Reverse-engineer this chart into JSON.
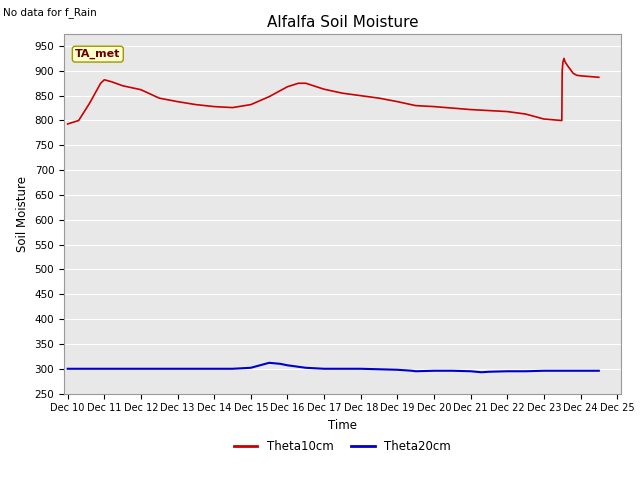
{
  "title": "Alfalfa Soil Moisture",
  "top_left_text": "No data for f_Rain",
  "xlabel": "Time",
  "ylabel": "Soil Moisture",
  "ylim": [
    250,
    975
  ],
  "yticks": [
    250,
    300,
    350,
    400,
    450,
    500,
    550,
    600,
    650,
    700,
    750,
    800,
    850,
    900,
    950
  ],
  "background_color": "#e8e8e8",
  "legend_labels": [
    "Theta10cm",
    "Theta20cm"
  ],
  "legend_colors": [
    "#cc0000",
    "#0000cc"
  ],
  "annotation_label": "TA_met",
  "annotation_box_color": "#ffffcc",
  "theta10_x": [
    0,
    0.3,
    0.6,
    0.9,
    1.0,
    1.2,
    1.5,
    2.0,
    2.5,
    3.0,
    3.5,
    4.0,
    4.5,
    5.0,
    5.5,
    6.0,
    6.3,
    6.5,
    7.0,
    7.5,
    8.0,
    8.5,
    9.0,
    9.5,
    10.0,
    10.5,
    11.0,
    11.5,
    12.0,
    12.5,
    13.0,
    13.48,
    13.49,
    13.5,
    13.52,
    13.55,
    13.58,
    13.65,
    13.7,
    13.8,
    13.9,
    14.0,
    14.5
  ],
  "theta10_y": [
    793,
    800,
    835,
    875,
    882,
    878,
    870,
    862,
    845,
    838,
    832,
    828,
    826,
    832,
    848,
    868,
    875,
    875,
    863,
    855,
    850,
    845,
    838,
    830,
    828,
    825,
    822,
    820,
    818,
    813,
    803,
    800,
    800,
    900,
    918,
    925,
    918,
    910,
    905,
    895,
    891,
    890,
    887
  ],
  "theta20_x": [
    0,
    0.5,
    1.0,
    1.5,
    2.0,
    2.5,
    3.0,
    3.5,
    4.0,
    4.5,
    5.0,
    5.3,
    5.5,
    5.8,
    6.0,
    6.3,
    6.5,
    7.0,
    7.5,
    8.0,
    8.5,
    9.0,
    9.4,
    9.5,
    10.0,
    10.5,
    11.0,
    11.3,
    11.5,
    12.0,
    12.5,
    13.0,
    13.5,
    14.0,
    14.5
  ],
  "theta20_y": [
    300,
    300,
    300,
    300,
    300,
    300,
    300,
    300,
    300,
    300,
    302,
    308,
    312,
    310,
    307,
    304,
    302,
    300,
    300,
    300,
    299,
    298,
    296,
    295,
    296,
    296,
    295,
    293,
    294,
    295,
    295,
    296,
    296,
    296,
    296
  ],
  "xtick_labels": [
    "Dec 10",
    "Dec 11",
    "Dec 12",
    "Dec 13",
    "Dec 14",
    "Dec 15",
    "Dec 16",
    "Dec 17",
    "Dec 18",
    "Dec 19",
    "Dec 20",
    "Dec 21",
    "Dec 22",
    "Dec 23",
    "Dec 24",
    "Dec 25"
  ],
  "xtick_positions": [
    0,
    1,
    2,
    3,
    4,
    5,
    6,
    7,
    8,
    9,
    10,
    11,
    12,
    13,
    14,
    15
  ]
}
